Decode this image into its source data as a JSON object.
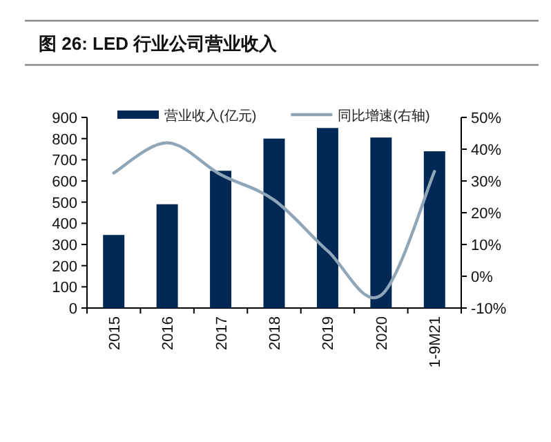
{
  "chart_data": {
    "type": "bar",
    "title": "图 26:  LED 行业公司营业收入",
    "categories": [
      "2015",
      "2016",
      "2017",
      "2018",
      "2019",
      "2020",
      "1-9M21"
    ],
    "series": [
      {
        "name": "营业收入(亿元)",
        "color": "#002855",
        "values": [
          345,
          490,
          648,
          800,
          850,
          805,
          740
        ]
      },
      {
        "name": "同比增速(右轴)",
        "color": "#8fa6b8",
        "type": "line",
        "axis": "y2",
        "values": [
          32.5,
          42,
          32,
          24,
          8,
          -6,
          33
        ]
      }
    ],
    "ylim": [
      0,
      900
    ],
    "yticks": [
      0,
      100,
      200,
      300,
      400,
      500,
      600,
      700,
      800,
      900
    ],
    "y2lim": [
      -10,
      50
    ],
    "y2ticks": [
      {
        "value": -10,
        "label": "-10%"
      },
      {
        "value": 0,
        "label": "0%"
      },
      {
        "value": 10,
        "label": "10%"
      },
      {
        "value": 20,
        "label": "20%"
      },
      {
        "value": 30,
        "label": "30%"
      },
      {
        "value": 40,
        "label": "40%"
      },
      {
        "value": 50,
        "label": "50%"
      }
    ],
    "legend": "top",
    "grid": false
  }
}
